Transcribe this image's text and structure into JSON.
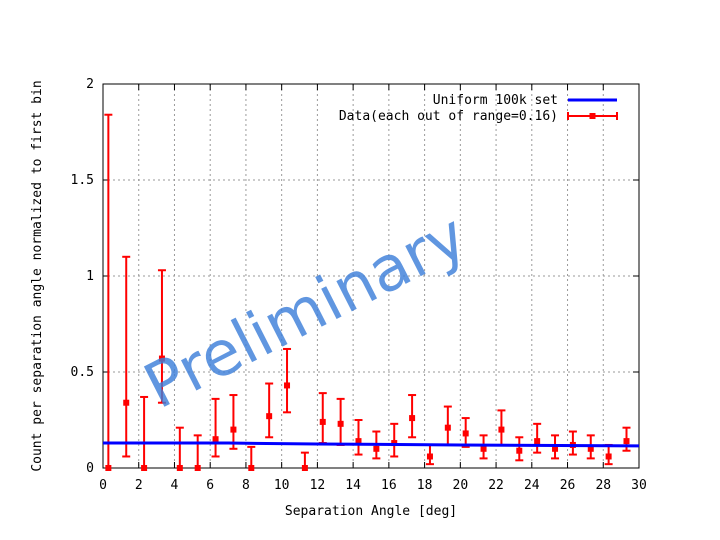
{
  "chart_data": {
    "type": "scatter",
    "title": "",
    "xlabel": "Separation Angle [deg]",
    "ylabel": "Count per separation angle normalized to first bin",
    "xlim": [
      0,
      30
    ],
    "ylim": [
      0,
      2
    ],
    "xticks": [
      "0",
      "2",
      "4",
      "6",
      "8",
      "10",
      "12",
      "14",
      "16",
      "18",
      "20",
      "22",
      "24",
      "26",
      "28",
      "30"
    ],
    "yticks": [
      "0",
      "0.5",
      "1",
      "1.5",
      "2"
    ],
    "grid": true,
    "legend_position": "top-right",
    "watermark": "Preliminary",
    "series": [
      {
        "name": "Uniform 100k set",
        "kind": "line",
        "color": "#0000ff",
        "points": [
          [
            0,
            0.13
          ],
          [
            7,
            0.13
          ],
          [
            12,
            0.125
          ],
          [
            20,
            0.12
          ],
          [
            30,
            0.115
          ]
        ]
      },
      {
        "name": "Data(each out of range=0.16)",
        "kind": "errorbar",
        "color": "#ff0000",
        "x": [
          0.3,
          1.3,
          2.3,
          3.3,
          4.3,
          5.3,
          6.3,
          7.3,
          8.3,
          9.3,
          10.3,
          11.3,
          12.3,
          13.3,
          14.3,
          15.3,
          16.3,
          17.3,
          18.3,
          19.3,
          20.3,
          21.3,
          22.3,
          23.3,
          24.3,
          25.3,
          26.3,
          27.3,
          28.3,
          29.3
        ],
        "y": [
          0.0,
          0.34,
          0.0,
          0.57,
          0.0,
          0.0,
          0.15,
          0.2,
          0.0,
          0.27,
          0.43,
          0.0,
          0.24,
          0.23,
          0.14,
          0.1,
          0.13,
          0.26,
          0.06,
          0.21,
          0.18,
          0.1,
          0.2,
          0.09,
          0.14,
          0.1,
          0.12,
          0.1,
          0.06,
          0.14
        ],
        "y_lower": [
          0.0,
          0.06,
          0.0,
          0.34,
          0.0,
          0.0,
          0.06,
          0.1,
          0.0,
          0.16,
          0.29,
          0.0,
          0.13,
          0.12,
          0.07,
          0.05,
          0.06,
          0.16,
          0.02,
          0.12,
          0.11,
          0.05,
          0.12,
          0.04,
          0.08,
          0.05,
          0.07,
          0.05,
          0.02,
          0.09
        ],
        "y_upper": [
          1.84,
          1.1,
          0.37,
          1.03,
          0.21,
          0.17,
          0.36,
          0.38,
          0.11,
          0.44,
          0.62,
          0.08,
          0.39,
          0.36,
          0.25,
          0.19,
          0.23,
          0.38,
          0.12,
          0.32,
          0.26,
          0.17,
          0.3,
          0.16,
          0.23,
          0.17,
          0.19,
          0.17,
          0.12,
          0.21
        ]
      }
    ]
  }
}
